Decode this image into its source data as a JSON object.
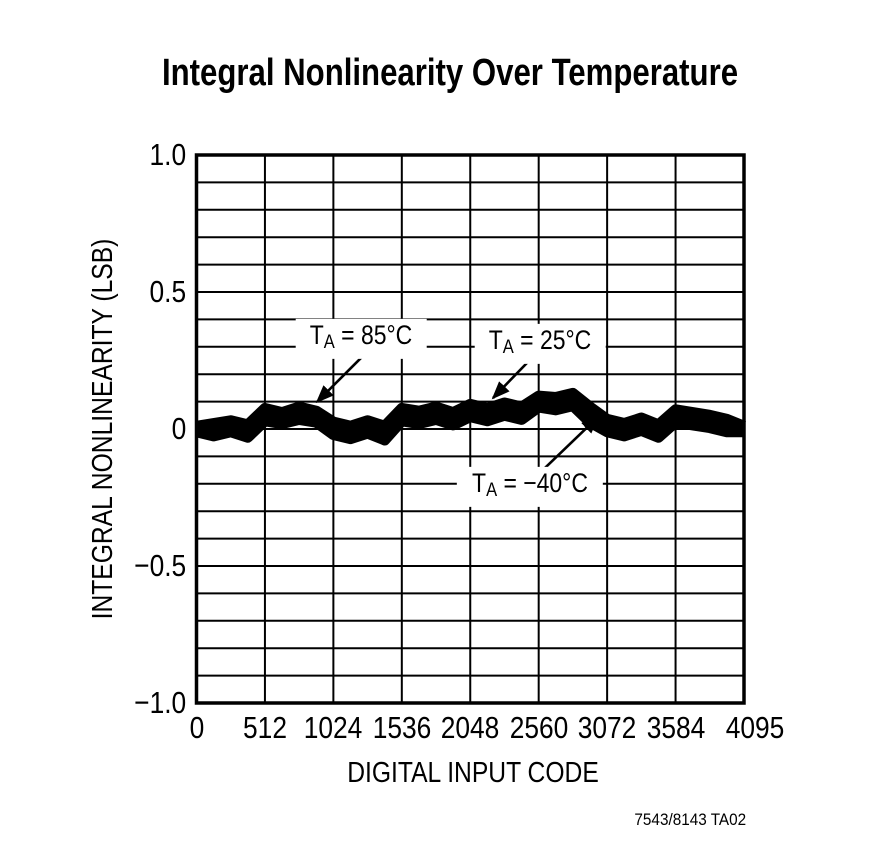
{
  "page": {
    "background": "#ffffff",
    "ink": "#000000"
  },
  "footer_code": "7543/8143 TA02",
  "chart_data": {
    "type": "line",
    "title": "Integral Nonlinearity Over Temperature",
    "xlabel": "DIGITAL INPUT CODE",
    "ylabel": "INTEGRAL NONLINEARITY (LSB)",
    "xlim": [
      0,
      4096
    ],
    "ylim": [
      -1.0,
      1.0
    ],
    "grid": true,
    "x_grid_step": 512,
    "y_grid_step": 0.1,
    "x_tick_values": [
      0,
      512,
      1024,
      1536,
      2048,
      2560,
      3072,
      3584,
      4095
    ],
    "x_tick_labels": [
      "0",
      "512",
      "1024",
      "1536",
      "2048",
      "2560",
      "3072",
      "3584",
      "4095"
    ],
    "y_tick_values": [
      1.0,
      0.5,
      0,
      -0.5,
      -1.0
    ],
    "y_tick_labels": [
      "1.0",
      "0.5",
      "0",
      "−0.5",
      "−1.0"
    ],
    "x": [
      0,
      128,
      256,
      384,
      512,
      640,
      768,
      896,
      1024,
      1152,
      1280,
      1408,
      1536,
      1664,
      1792,
      1920,
      2048,
      2176,
      2304,
      2432,
      2560,
      2688,
      2816,
      2944,
      3072,
      3200,
      3328,
      3456,
      3584,
      3712,
      3840,
      3968,
      4095
    ],
    "series": [
      {
        "name": "TA = 85°C",
        "temp_c": 85,
        "values": [
          0.01,
          0.02,
          0.03,
          0.015,
          0.075,
          0.06,
          0.08,
          0.065,
          0.025,
          0.01,
          0.03,
          0.01,
          0.075,
          0.065,
          0.08,
          0.06,
          0.09,
          0.075,
          0.095,
          0.08,
          0.12,
          0.115,
          0.13,
          0.08,
          0.035,
          0.02,
          0.04,
          0.015,
          0.07,
          0.06,
          0.05,
          0.035,
          0.01
        ]
      },
      {
        "name": "TA = 25°C",
        "temp_c": 25,
        "values": [
          0.0,
          -0.005,
          0.01,
          -0.01,
          0.05,
          0.04,
          0.06,
          0.045,
          0.0,
          -0.01,
          0.01,
          -0.015,
          0.05,
          0.045,
          0.06,
          0.04,
          0.065,
          0.055,
          0.07,
          0.06,
          0.1,
          0.095,
          0.11,
          0.05,
          0.01,
          0.0,
          0.015,
          -0.005,
          0.05,
          0.04,
          0.03,
          0.015,
          0.0
        ]
      },
      {
        "name": "TA = −40°C",
        "temp_c": -40,
        "values": [
          -0.01,
          -0.025,
          -0.01,
          -0.03,
          0.03,
          0.02,
          0.035,
          0.025,
          -0.02,
          -0.035,
          -0.015,
          -0.04,
          0.03,
          0.02,
          0.035,
          0.015,
          0.045,
          0.03,
          0.05,
          0.035,
          0.08,
          0.07,
          0.085,
          0.025,
          -0.01,
          -0.025,
          -0.005,
          -0.03,
          0.025,
          0.015,
          0.005,
          -0.01,
          -0.01
        ]
      }
    ],
    "annotations": [
      {
        "id": "ta85",
        "base": "T",
        "sub": "A",
        "rest": " = 85°C",
        "label_at": {
          "code": 1231,
          "lsb": 0.329
        },
        "arrow_from": {
          "code": 1238,
          "lsb": 0.263
        },
        "arrow_to": {
          "code": 902,
          "lsb": 0.099
        }
      },
      {
        "id": "ta25",
        "base": "T",
        "sub": "A",
        "rest": " = 25°C",
        "label_at": {
          "code": 2570,
          "lsb": 0.31
        },
        "arrow_from": {
          "code": 2480,
          "lsb": 0.245
        },
        "arrow_to": {
          "code": 2218,
          "lsb": 0.113
        }
      },
      {
        "id": "ta-40",
        "base": "T",
        "sub": "A",
        "rest": " = −40°C",
        "label_at": {
          "code": 2495,
          "lsb": -0.212
        },
        "arrow_from": {
          "code": 2607,
          "lsb": -0.142
        },
        "arrow_to": {
          "code": 3004,
          "lsb": 0.044
        }
      }
    ]
  }
}
